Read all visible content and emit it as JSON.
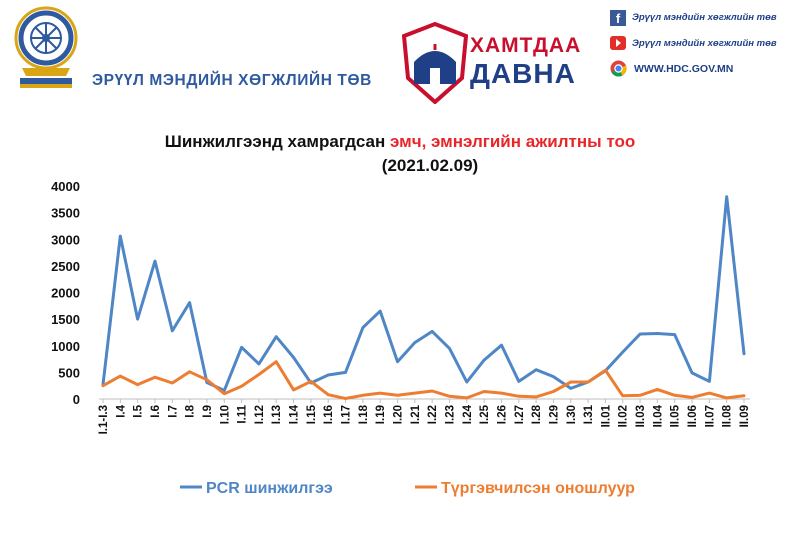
{
  "header": {
    "org_name": "ЭРҮҮЛ МЭНДИЙН ХӨГЖЛИЙН ТӨВ",
    "campaign_line1": "ХАМТДАА",
    "campaign_line2": "ДАВНА",
    "facebook_label": "Эрүүл мэндийн хөгжлийн төв",
    "youtube_label": "Эрүүл мэндийн хөгжлийн төв",
    "website": "WWW.HDC.GOV.MN"
  },
  "icons": [
    "emblem-logo",
    "ger-icon",
    "facebook-icon",
    "youtube-icon",
    "chrome-icon"
  ],
  "colors": {
    "pcr": "#4f86c6",
    "rapid": "#ed7d31",
    "title_highlight": "#e8262a",
    "brand_blue": "#1f3f86",
    "brand_red": "#c8102e"
  },
  "chart_data": {
    "type": "line",
    "title_part1": "Шинжилгээнд хамрагдсан ",
    "title_part2": "эмч, эмнэлгийн ажилтны тоо",
    "subtitle": "(2021.02.09)",
    "ylim": [
      0,
      4000
    ],
    "yticks": [
      0,
      500,
      1000,
      1500,
      2000,
      2500,
      3000,
      3500,
      4000
    ],
    "categories": [
      "I.1-I.3",
      "I.4",
      "I.5",
      "I.6",
      "I.7",
      "I.8",
      "I.9",
      "I.10",
      "I.11",
      "I.12",
      "I.13",
      "I.14",
      "I.15",
      "I.16",
      "I.17",
      "I.18",
      "I.19",
      "I.20",
      "I.21",
      "I.22",
      "I.23",
      "I.24",
      "I.25",
      "I.26",
      "I.27",
      "I.28",
      "I.29",
      "I.30",
      "I.31",
      "II.01",
      "II.02",
      "II.03",
      "II.04",
      "II.05",
      "II.06",
      "II.07",
      "II.08",
      "II.09"
    ],
    "series": [
      {
        "name": "PCR шинжилгээ",
        "color": "#4f86c6",
        "values": [
          270,
          3060,
          1500,
          2590,
          1280,
          1810,
          310,
          160,
          970,
          660,
          1170,
          780,
          300,
          450,
          500,
          1340,
          1650,
          700,
          1060,
          1270,
          950,
          320,
          730,
          1010,
          330,
          550,
          420,
          200,
          320,
          530,
          880,
          1220,
          1230,
          1210,
          490,
          330,
          3800,
          850
        ]
      },
      {
        "name": "Түргэвчилсэн оношлуур",
        "color": "#ed7d31",
        "values": [
          250,
          430,
          270,
          410,
          300,
          510,
          360,
          100,
          240,
          460,
          700,
          170,
          330,
          80,
          10,
          70,
          110,
          70,
          110,
          150,
          50,
          20,
          140,
          110,
          50,
          40,
          140,
          320,
          320,
          540,
          60,
          70,
          180,
          70,
          30,
          110,
          20,
          60
        ]
      }
    ],
    "legend_position": "bottom"
  }
}
